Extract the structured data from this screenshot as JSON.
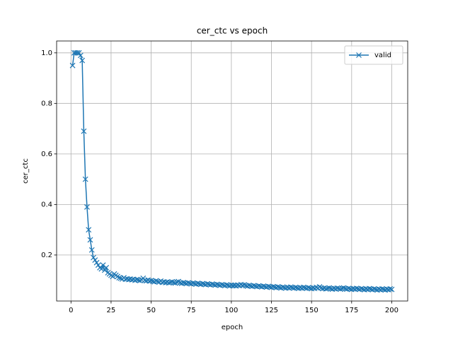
{
  "chart_data": {
    "type": "line",
    "title": "cer_ctc vs epoch",
    "xlabel": "epoch",
    "ylabel": "cer_ctc",
    "x": [
      1,
      2,
      3,
      4,
      5,
      6,
      7,
      8,
      9,
      10,
      11,
      12,
      13,
      14,
      15,
      16,
      17,
      18,
      19,
      20,
      21,
      22,
      23,
      24,
      25,
      26,
      27,
      28,
      29,
      30,
      31,
      32,
      33,
      34,
      35,
      36,
      37,
      38,
      39,
      40,
      41,
      42,
      43,
      44,
      45,
      46,
      47,
      48,
      49,
      50,
      51,
      52,
      53,
      54,
      55,
      56,
      57,
      58,
      59,
      60,
      61,
      62,
      63,
      64,
      65,
      66,
      67,
      68,
      69,
      70,
      71,
      72,
      73,
      74,
      75,
      76,
      77,
      78,
      79,
      80,
      81,
      82,
      83,
      84,
      85,
      86,
      87,
      88,
      89,
      90,
      91,
      92,
      93,
      94,
      95,
      96,
      97,
      98,
      99,
      100,
      101,
      102,
      103,
      104,
      105,
      106,
      107,
      108,
      109,
      110,
      111,
      112,
      113,
      114,
      115,
      116,
      117,
      118,
      119,
      120,
      121,
      122,
      123,
      124,
      125,
      126,
      127,
      128,
      129,
      130,
      131,
      132,
      133,
      134,
      135,
      136,
      137,
      138,
      139,
      140,
      141,
      142,
      143,
      144,
      145,
      146,
      147,
      148,
      149,
      150,
      151,
      152,
      153,
      154,
      155,
      156,
      157,
      158,
      159,
      160,
      161,
      162,
      163,
      164,
      165,
      166,
      167,
      168,
      169,
      170,
      171,
      172,
      173,
      174,
      175,
      176,
      177,
      178,
      179,
      180,
      181,
      182,
      183,
      184,
      185,
      186,
      187,
      188,
      189,
      190,
      191,
      192,
      193,
      194,
      195,
      196,
      197,
      198,
      199,
      200
    ],
    "series": [
      {
        "name": "valid",
        "color": "#1f77b4",
        "values": [
          0.95,
          1.0,
          1.0,
          1.0,
          1.0,
          0.99,
          0.97,
          0.69,
          0.5,
          0.39,
          0.3,
          0.26,
          0.22,
          0.19,
          0.18,
          0.17,
          0.16,
          0.15,
          0.145,
          0.16,
          0.14,
          0.15,
          0.13,
          0.125,
          0.12,
          0.115,
          0.125,
          0.12,
          0.115,
          0.11,
          0.108,
          0.105,
          0.11,
          0.104,
          0.106,
          0.103,
          0.105,
          0.102,
          0.104,
          0.1,
          0.103,
          0.101,
          0.099,
          0.102,
          0.108,
          0.1,
          0.098,
          0.101,
          0.097,
          0.099,
          0.096,
          0.094,
          0.098,
          0.095,
          0.093,
          0.097,
          0.092,
          0.094,
          0.091,
          0.093,
          0.09,
          0.092,
          0.094,
          0.091,
          0.089,
          0.093,
          0.095,
          0.09,
          0.088,
          0.091,
          0.089,
          0.087,
          0.09,
          0.088,
          0.086,
          0.089,
          0.087,
          0.085,
          0.088,
          0.086,
          0.084,
          0.087,
          0.085,
          0.083,
          0.086,
          0.084,
          0.082,
          0.085,
          0.083,
          0.081,
          0.084,
          0.082,
          0.08,
          0.083,
          0.081,
          0.079,
          0.082,
          0.08,
          0.078,
          0.081,
          0.079,
          0.08,
          0.078,
          0.081,
          0.079,
          0.083,
          0.08,
          0.082,
          0.079,
          0.077,
          0.08,
          0.078,
          0.076,
          0.079,
          0.077,
          0.075,
          0.078,
          0.076,
          0.074,
          0.077,
          0.075,
          0.073,
          0.076,
          0.074,
          0.072,
          0.075,
          0.073,
          0.071,
          0.074,
          0.072,
          0.07,
          0.073,
          0.071,
          0.069,
          0.072,
          0.07,
          0.073,
          0.071,
          0.069,
          0.072,
          0.07,
          0.068,
          0.071,
          0.069,
          0.072,
          0.07,
          0.068,
          0.071,
          0.069,
          0.067,
          0.07,
          0.068,
          0.072,
          0.069,
          0.074,
          0.07,
          0.067,
          0.069,
          0.066,
          0.068,
          0.07,
          0.067,
          0.065,
          0.068,
          0.066,
          0.069,
          0.067,
          0.065,
          0.068,
          0.07,
          0.067,
          0.065,
          0.068,
          0.066,
          0.064,
          0.067,
          0.065,
          0.068,
          0.066,
          0.064,
          0.067,
          0.065,
          0.063,
          0.066,
          0.064,
          0.067,
          0.065,
          0.063,
          0.066,
          0.064,
          0.062,
          0.065,
          0.063,
          0.066,
          0.064,
          0.062,
          0.065,
          0.063,
          0.066,
          0.064
        ]
      }
    ],
    "xlim": [
      -8.95,
      209.95
    ],
    "xticks": [
      0,
      25,
      50,
      75,
      100,
      125,
      150,
      175,
      200
    ],
    "ylim": [
      0.018,
      1.047
    ],
    "yticks": [
      0.2,
      0.4,
      0.6,
      0.8,
      {
        "value": 1,
        "label": "1.0"
      }
    ],
    "grid": true,
    "legend": "upper right"
  }
}
